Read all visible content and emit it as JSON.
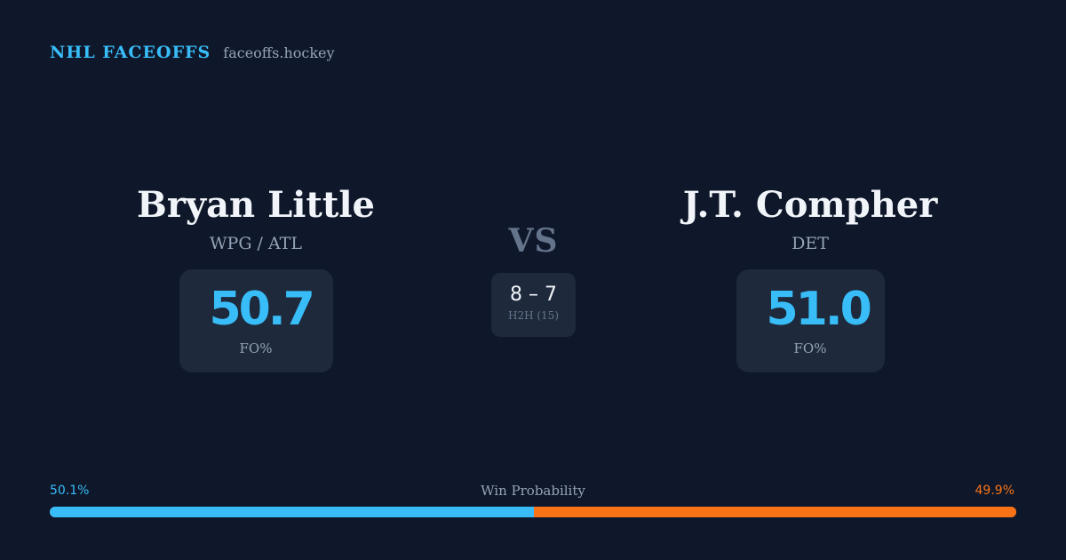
{
  "header": {
    "brand": "NHL FACEOFFS",
    "domain": "faceoffs.hockey"
  },
  "player_left": {
    "name": "Bryan Little",
    "team": "WPG / ATL",
    "stat_value": "50.7",
    "stat_label": "FO%"
  },
  "player_right": {
    "name": "J.T. Compher",
    "team": "DET",
    "stat_value": "51.0",
    "stat_label": "FO%"
  },
  "versus": {
    "label": "VS",
    "h2h_score": "8 – 7",
    "h2h_label": "H2H (15)"
  },
  "win_probability": {
    "title": "Win Probability",
    "left_label": "50.1%",
    "right_label": "49.9%",
    "left_value": 50.1,
    "right_value": 49.9
  },
  "colors": {
    "background": "#0f172a",
    "accent_left": "#38bdf8",
    "accent_right": "#f97316",
    "card": "#1e293b"
  }
}
